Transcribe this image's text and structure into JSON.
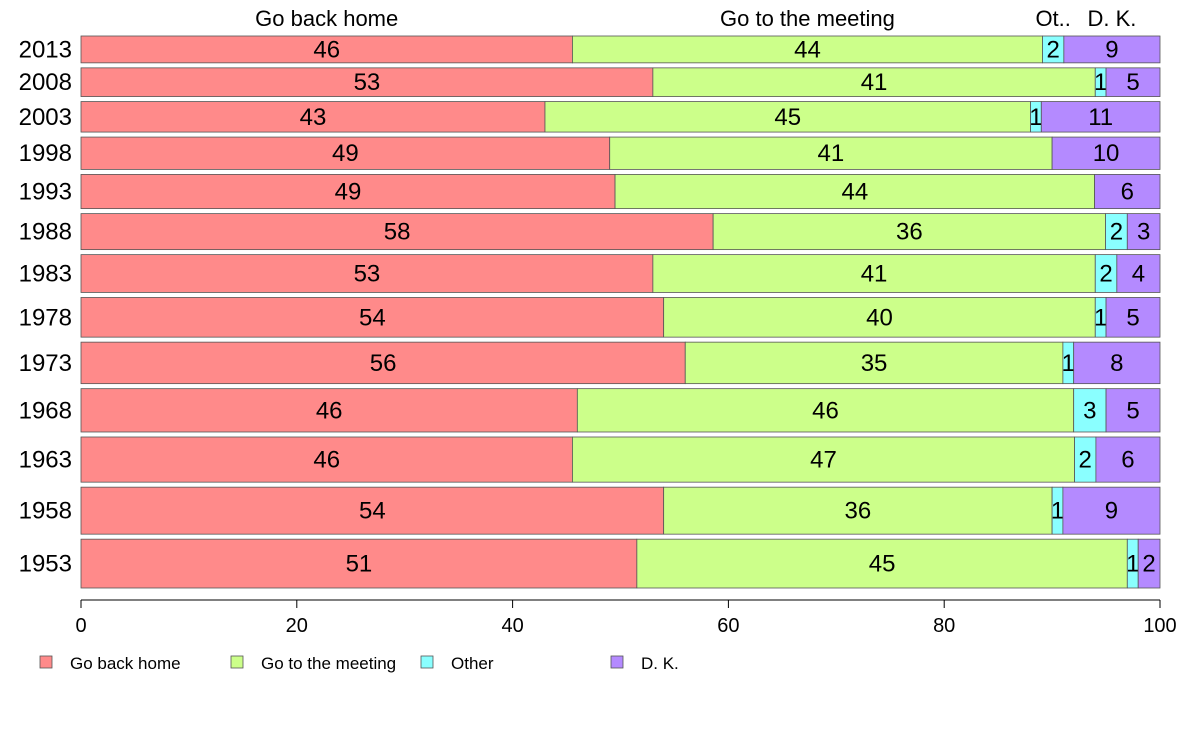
{
  "chart_data": {
    "type": "bar",
    "orientation": "horizontal",
    "stacked": true,
    "variable_width": true,
    "categories": [
      "2013",
      "2008",
      "2003",
      "1998",
      "1993",
      "1988",
      "1983",
      "1978",
      "1973",
      "1968",
      "1963",
      "1958",
      "1953"
    ],
    "series": [
      {
        "name": "Go back home",
        "color": "#FF8A8A",
        "values": [
          46,
          53,
          43,
          49,
          49,
          58,
          53,
          54,
          56,
          46,
          46,
          54,
          51
        ]
      },
      {
        "name": "Go to the meeting",
        "color": "#CCFF8A",
        "values": [
          44,
          41,
          45,
          41,
          44,
          36,
          41,
          40,
          35,
          46,
          47,
          36,
          45
        ]
      },
      {
        "name": "Other",
        "color": "#8AFFFF",
        "values": [
          2,
          1,
          1,
          0,
          0,
          2,
          2,
          1,
          1,
          3,
          2,
          1,
          1
        ]
      },
      {
        "name": "D. K.",
        "color": "#B48AFF",
        "values": [
          9,
          5,
          11,
          10,
          6,
          3,
          4,
          5,
          8,
          5,
          6,
          9,
          2
        ]
      }
    ],
    "top_labels": [
      "Go back home",
      "Go to the meeting",
      "Ot..",
      "D. K."
    ],
    "xlim": [
      0,
      100
    ],
    "xticks": [
      "0",
      "20",
      "40",
      "60",
      "80",
      "100"
    ],
    "legend_position": "bottom",
    "grid": false
  }
}
